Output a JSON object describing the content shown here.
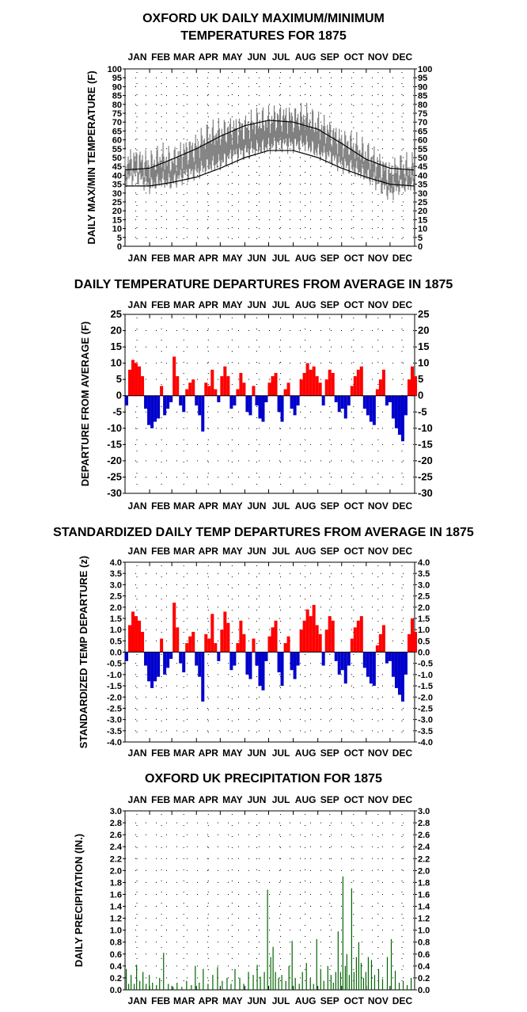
{
  "months": [
    "JAN",
    "FEB",
    "MAR",
    "APR",
    "MAY",
    "JUN",
    "JUL",
    "AUG",
    "SEP",
    "OCT",
    "NOV",
    "DEC"
  ],
  "colors": {
    "positive": "#ff0000",
    "negative": "#0000cc",
    "precip": "#006600",
    "max_min": "#808080",
    "normal": "#000000"
  },
  "chart_data": [
    {
      "id": "temps",
      "type": "line",
      "title_lines": [
        "OXFORD UK DAILY MAXIMUM/MINIMUM",
        "TEMPERATURES FOR 1875"
      ],
      "ylabel": "DAILY MAX/MIN TEMPERATURE (F)",
      "ylim": [
        0,
        100
      ],
      "yticks": [
        "0",
        "5",
        "10",
        "15",
        "20",
        "25",
        "30",
        "35",
        "40",
        "45",
        "50",
        "55",
        "60",
        "65",
        "70",
        "75",
        "80",
        "85",
        "90",
        "95",
        "100"
      ],
      "grid": true,
      "series": [
        {
          "role": "daily-max-min-range",
          "x": [
            1,
            15,
            32,
            46,
            60,
            74,
            91,
            105,
            121,
            135,
            152,
            166,
            182,
            196,
            213,
            227,
            244,
            258,
            274,
            288,
            305,
            319,
            335,
            349,
            365
          ],
          "max": [
            47,
            49,
            46,
            50,
            48,
            53,
            56,
            62,
            64,
            66,
            67,
            70,
            71,
            73,
            72,
            73,
            68,
            65,
            59,
            57,
            52,
            47,
            41,
            45,
            44
          ],
          "min": [
            38,
            40,
            34,
            37,
            36,
            40,
            42,
            45,
            47,
            51,
            53,
            55,
            56,
            58,
            57,
            58,
            53,
            51,
            46,
            44,
            40,
            36,
            30,
            34,
            35
          ]
        },
        {
          "role": "normal-max",
          "x": [
            1,
            32,
            60,
            91,
            121,
            152,
            182,
            213,
            244,
            274,
            305,
            335,
            365
          ],
          "values": [
            43,
            44,
            49,
            55,
            62,
            68,
            71,
            70,
            66,
            58,
            49,
            44,
            43
          ]
        },
        {
          "role": "normal-min",
          "x": [
            1,
            32,
            60,
            91,
            121,
            152,
            182,
            213,
            244,
            274,
            305,
            335,
            365
          ],
          "values": [
            34,
            34,
            36,
            39,
            44,
            50,
            54,
            54,
            50,
            44,
            39,
            35,
            34
          ]
        }
      ]
    },
    {
      "id": "departures",
      "type": "bar",
      "title_lines": [
        "DAILY TEMPERATURE DEPARTURES FROM AVERAGE IN 1875"
      ],
      "ylabel": "DEPARTURE FROM AVERAGE (F)",
      "ylim": [
        -30,
        25
      ],
      "yticks": [
        "-30",
        "-25",
        "-20",
        "-15",
        "-10",
        "-5",
        "0",
        "5",
        "10",
        "15",
        "20",
        "25"
      ],
      "grid": true,
      "x": [
        1,
        5,
        9,
        13,
        17,
        21,
        25,
        29,
        33,
        37,
        41,
        45,
        49,
        53,
        57,
        61,
        65,
        69,
        73,
        77,
        81,
        85,
        89,
        93,
        97,
        101,
        105,
        109,
        113,
        117,
        121,
        125,
        129,
        133,
        137,
        141,
        145,
        149,
        153,
        157,
        161,
        165,
        169,
        173,
        177,
        181,
        185,
        189,
        193,
        197,
        201,
        205,
        209,
        213,
        217,
        221,
        225,
        229,
        233,
        237,
        241,
        245,
        249,
        253,
        257,
        261,
        265,
        269,
        273,
        277,
        281,
        285,
        289,
        293,
        297,
        301,
        305,
        309,
        313,
        317,
        321,
        325,
        329,
        333,
        337,
        341,
        345,
        349,
        353,
        357,
        361,
        365
      ],
      "values": [
        -3,
        8,
        11,
        10,
        9,
        6,
        -4,
        -9,
        -10,
        -8,
        -7,
        3,
        -6,
        -4,
        -2,
        12,
        6,
        -3,
        -5,
        2,
        4,
        5,
        -3,
        -6,
        -11,
        4,
        3,
        8,
        2,
        -2,
        6,
        9,
        6,
        -4,
        -3,
        2,
        7,
        4,
        -5,
        -6,
        3,
        -3,
        -7,
        -8,
        -2,
        4,
        6,
        7,
        -5,
        -8,
        2,
        4,
        -4,
        -6,
        -3,
        5,
        7,
        10,
        8,
        9,
        6,
        4,
        -3,
        5,
        8,
        7,
        -2,
        -5,
        -4,
        -7,
        -3,
        3,
        6,
        8,
        9,
        -4,
        -6,
        -8,
        -9,
        2,
        5,
        8,
        -3,
        -2,
        -7,
        -10,
        -12,
        -14,
        -6,
        5,
        9,
        6
      ]
    },
    {
      "id": "standardized",
      "type": "bar",
      "title_lines": [
        "STANDARDIZED DAILY TEMP DEPARTURES FROM AVERAGE IN 1875"
      ],
      "ylabel": "STANDARDIZED TEMP DEPARTURE (z)",
      "ylim": [
        -4.0,
        4.0
      ],
      "yticks": [
        "-4.0",
        "-3.5",
        "-3.0",
        "-2.5",
        "-2.0",
        "-1.5",
        "-1.0",
        "-0.5",
        "0.0",
        "0.5",
        "1.0",
        "1.5",
        "2.0",
        "2.5",
        "3.0",
        "3.5",
        "4.0"
      ],
      "grid": true,
      "x": [
        1,
        5,
        9,
        13,
        17,
        21,
        25,
        29,
        33,
        37,
        41,
        45,
        49,
        53,
        57,
        61,
        65,
        69,
        73,
        77,
        81,
        85,
        89,
        93,
        97,
        101,
        105,
        109,
        113,
        117,
        121,
        125,
        129,
        133,
        137,
        141,
        145,
        149,
        153,
        157,
        161,
        165,
        169,
        173,
        177,
        181,
        185,
        189,
        193,
        197,
        201,
        205,
        209,
        213,
        217,
        221,
        225,
        229,
        233,
        237,
        241,
        245,
        249,
        253,
        257,
        261,
        265,
        269,
        273,
        277,
        281,
        285,
        289,
        293,
        297,
        301,
        305,
        309,
        313,
        317,
        321,
        325,
        329,
        333,
        337,
        341,
        345,
        349,
        353,
        357,
        361,
        365
      ],
      "values": [
        -0.4,
        1.2,
        1.8,
        1.6,
        1.4,
        0.9,
        -0.6,
        -1.3,
        -1.6,
        -1.3,
        -1.1,
        0.6,
        -1.0,
        -0.7,
        -0.3,
        2.2,
        1.1,
        -0.5,
        -0.9,
        0.4,
        0.7,
        0.9,
        -0.6,
        -1.1,
        -2.2,
        0.8,
        0.6,
        1.7,
        0.4,
        -0.4,
        1.0,
        1.8,
        1.3,
        -0.8,
        -0.6,
        0.4,
        1.4,
        0.8,
        -1.0,
        -1.2,
        0.6,
        -0.6,
        -1.5,
        -1.7,
        -0.4,
        0.7,
        1.1,
        1.4,
        -0.9,
        -1.5,
        0.4,
        0.7,
        -0.8,
        -1.2,
        -0.6,
        1.0,
        1.4,
        1.9,
        1.6,
        2.1,
        1.2,
        0.8,
        -0.6,
        1.0,
        1.6,
        1.4,
        -0.4,
        -1.0,
        -0.8,
        -1.4,
        -0.6,
        0.6,
        1.1,
        1.4,
        1.6,
        -0.7,
        -1.1,
        -1.4,
        -1.5,
        0.3,
        0.8,
        1.2,
        -0.5,
        -0.4,
        -1.1,
        -1.6,
        -1.9,
        -2.2,
        -1.0,
        0.8,
        1.5,
        0.9
      ]
    },
    {
      "id": "precip",
      "type": "bar",
      "title_lines": [
        "OXFORD UK PRECIPITATION FOR 1875"
      ],
      "ylabel": "DAILY PRECIPITATION (IN.)",
      "ylim": [
        0.0,
        3.0
      ],
      "yticks": [
        "0.0",
        "0.2",
        "0.4",
        "0.6",
        "0.8",
        "1.0",
        "1.2",
        "1.4",
        "1.6",
        "1.8",
        "2.0",
        "2.2",
        "2.4",
        "2.6",
        "2.8",
        "3.0"
      ],
      "grid": true,
      "x": [
        2,
        5,
        8,
        12,
        15,
        19,
        23,
        27,
        31,
        35,
        40,
        44,
        49,
        55,
        61,
        66,
        72,
        78,
        84,
        89,
        94,
        99,
        105,
        111,
        117,
        123,
        129,
        134,
        139,
        145,
        150,
        156,
        162,
        167,
        171,
        176,
        180,
        184,
        187,
        190,
        194,
        198,
        203,
        207,
        211,
        215,
        220,
        224,
        229,
        234,
        238,
        242,
        247,
        251,
        256,
        260,
        263,
        266,
        269,
        272,
        275,
        278,
        280,
        283,
        286,
        289,
        292,
        295,
        298,
        301,
        304,
        307,
        311,
        315,
        320,
        325,
        331,
        336,
        341,
        346,
        351,
        356,
        361
      ],
      "values": [
        0.35,
        0.1,
        0.25,
        0.1,
        0.42,
        0.15,
        0.3,
        0.1,
        0.25,
        0.12,
        0.08,
        0.2,
        0.62,
        0.1,
        0.05,
        0.12,
        0.05,
        0.15,
        0.08,
        0.4,
        0.12,
        0.35,
        0.1,
        0.25,
        0.38,
        0.15,
        0.2,
        0.1,
        0.35,
        0.2,
        0.1,
        0.3,
        0.25,
        0.42,
        0.22,
        0.3,
        1.68,
        0.55,
        0.72,
        0.3,
        0.2,
        0.25,
        0.15,
        0.4,
        0.82,
        0.2,
        0.1,
        0.3,
        0.45,
        0.2,
        0.1,
        0.85,
        0.35,
        0.15,
        0.4,
        0.25,
        0.12,
        0.3,
        0.98,
        0.3,
        1.9,
        0.4,
        0.6,
        0.25,
        1.7,
        0.3,
        0.55,
        0.8,
        0.45,
        0.2,
        0.3,
        0.55,
        0.5,
        0.25,
        0.35,
        0.18,
        0.55,
        0.85,
        0.32,
        0.12,
        0.15,
        0.08,
        0.2
      ]
    }
  ]
}
